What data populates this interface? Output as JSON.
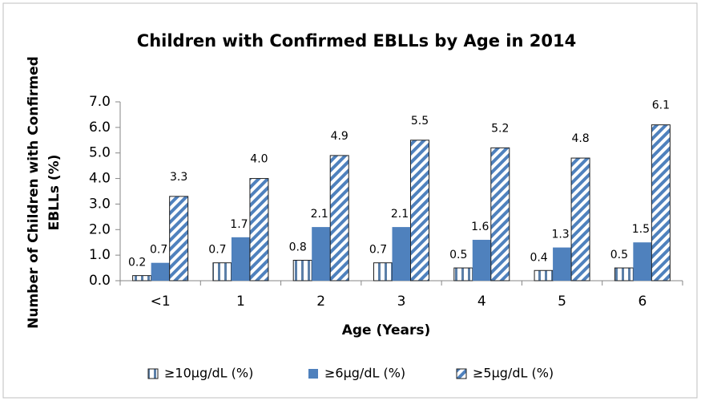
{
  "chart_data": {
    "type": "bar",
    "title": "Children with Confirmed EBLLs by Age in 2014",
    "xlabel": "Age (Years)",
    "ylabel": [
      "Number of Children with Confirmed",
      "EBLLs  (%)"
    ],
    "categories": [
      "<1",
      "1",
      "2",
      "3",
      "4",
      "5",
      "6"
    ],
    "series": [
      {
        "name": "≥10µg/dL (%)",
        "color": "#4f81bd",
        "pattern": "vertical",
        "values": [
          0.2,
          0.7,
          0.8,
          0.7,
          0.5,
          0.4,
          0.5
        ],
        "value_labels": [
          "0.2",
          "0.7",
          "0.8",
          "0.7",
          "0.5",
          "0.4",
          "0.5"
        ]
      },
      {
        "name": "≥6µg/dL (%)",
        "color": "#4f81bd",
        "pattern": "solid",
        "values": [
          0.7,
          1.7,
          2.1,
          2.1,
          1.6,
          1.3,
          1.5
        ],
        "value_labels": [
          "0.7",
          "1.7",
          "2.1",
          "2.1",
          "1.6",
          "1.3",
          "1.5"
        ]
      },
      {
        "name": "≥5µg/dL (%)",
        "color": "#4f81bd",
        "pattern": "diagonal",
        "values": [
          3.3,
          4.0,
          4.9,
          5.5,
          5.2,
          4.8,
          6.1
        ],
        "value_labels": [
          "3.3",
          "4.0",
          "4.9",
          "5.5",
          "5.2",
          "4.8",
          "6.1"
        ]
      }
    ],
    "ylim": [
      0,
      7
    ],
    "yticks": [
      {
        "value": 0,
        "label": "0.0"
      },
      {
        "value": 1,
        "label": "1.0"
      },
      {
        "value": 2,
        "label": "2.0"
      },
      {
        "value": 3,
        "label": "3.0"
      },
      {
        "value": 4,
        "label": "4.0"
      },
      {
        "value": 5,
        "label": "5.0"
      },
      {
        "value": 6,
        "label": "6.0"
      },
      {
        "value": 7,
        "label": "7.0"
      }
    ],
    "grid": false,
    "legend": "bottom"
  }
}
